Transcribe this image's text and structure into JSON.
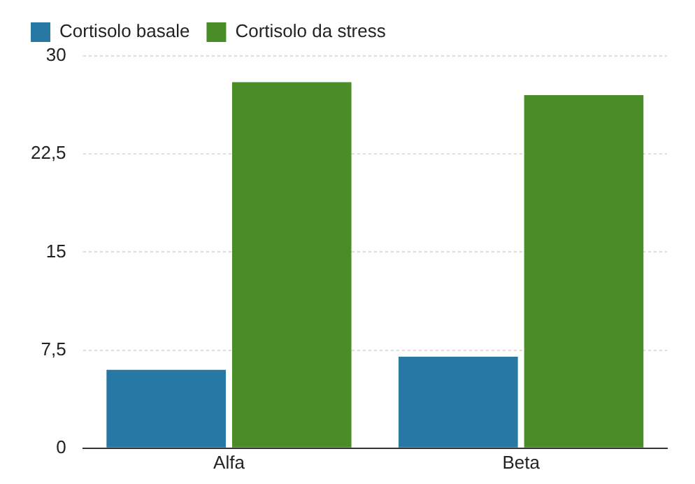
{
  "chart_data": {
    "type": "bar",
    "categories": [
      "Alfa",
      "Beta"
    ],
    "series": [
      {
        "name": "Cortisolo basale",
        "color": "#2878a4",
        "values": [
          6,
          7
        ]
      },
      {
        "name": "Cortisolo da stress",
        "color": "#4a8c28",
        "values": [
          28,
          27
        ]
      }
    ],
    "ylim": [
      0,
      30
    ],
    "yticks": [
      0,
      {
        "value": 7.5,
        "label": "7,5"
      },
      15,
      {
        "value": 22.5,
        "label": "22,5"
      },
      30
    ],
    "grid": "y",
    "legend": "top left"
  }
}
